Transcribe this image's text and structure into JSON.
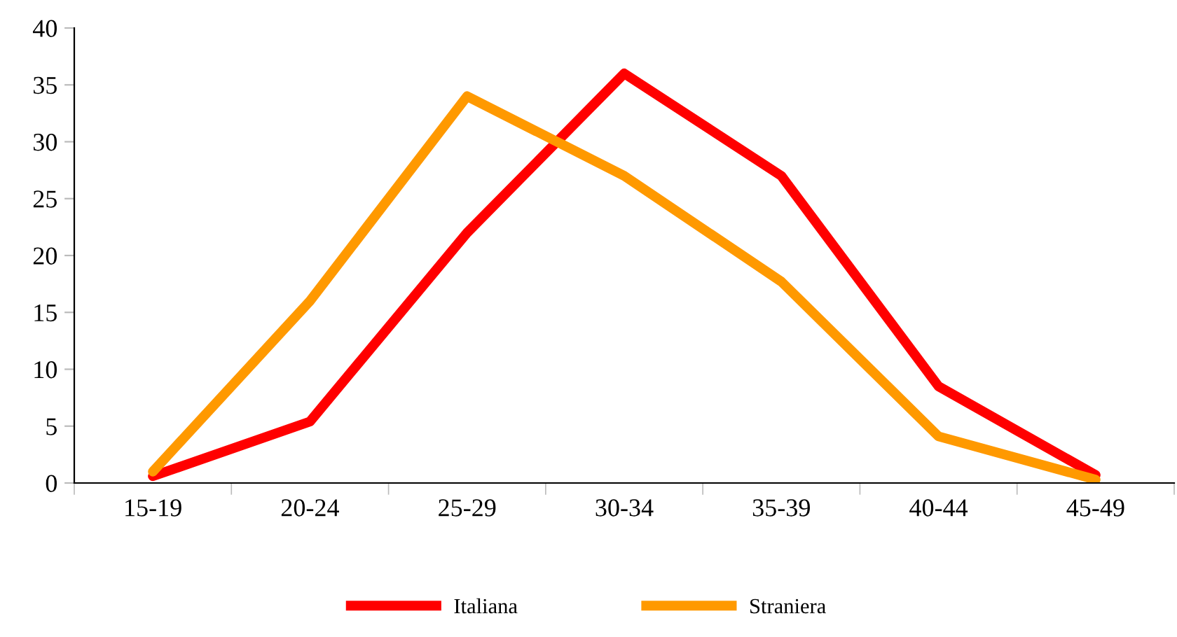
{
  "chart_data": {
    "type": "line",
    "categories": [
      "15-19",
      "20-24",
      "25-29",
      "30-34",
      "35-39",
      "40-44",
      "45-49"
    ],
    "series": [
      {
        "name": "Italiana",
        "color": "#ff0000",
        "values": [
          0.6,
          5.4,
          22,
          36,
          27,
          8.5,
          0.7
        ]
      },
      {
        "name": "Straniera",
        "color": "#ff9900",
        "values": [
          1.0,
          16,
          34,
          27,
          17.7,
          4.1,
          0.3
        ]
      }
    ],
    "ylim": [
      0,
      40
    ],
    "yticks": [
      0,
      5,
      10,
      15,
      20,
      25,
      30,
      35,
      40
    ],
    "grid": false,
    "legend": "bottom",
    "marker": "none",
    "line_style": "solid"
  }
}
